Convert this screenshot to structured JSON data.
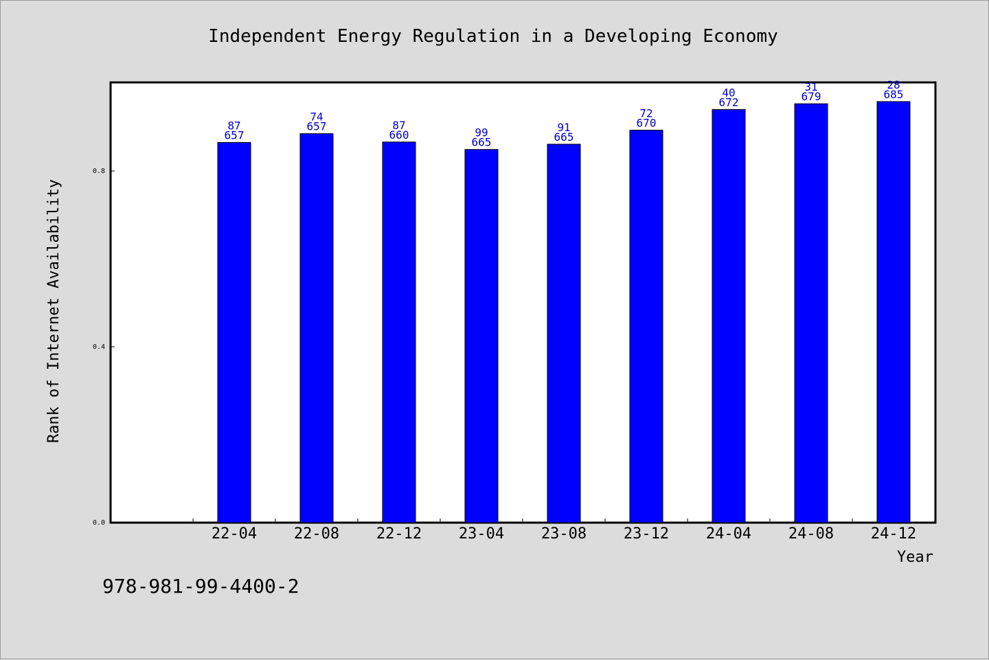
{
  "chart_data": {
    "type": "bar",
    "title": "Independent Energy Regulation in a Developing Economy",
    "xlabel": "Year",
    "ylabel": "Rank of Internet Availability",
    "categories": [
      "22-04",
      "22-08",
      "22-12",
      "23-04",
      "23-08",
      "23-12",
      "24-04",
      "24-08",
      "24-12"
    ],
    "values": [
      0.865,
      0.885,
      0.866,
      0.849,
      0.861,
      0.893,
      0.94,
      0.953,
      0.958
    ],
    "label_top": [
      "87",
      "74",
      "87",
      "99",
      "91",
      "72",
      "40",
      "31",
      "28"
    ],
    "label_bottom": [
      "657",
      "657",
      "660",
      "665",
      "665",
      "670",
      "672",
      "679",
      "685"
    ],
    "yticks": [
      "0.0",
      "0.4",
      "0.8"
    ],
    "ylim": [
      0,
      1.0
    ],
    "grid": false,
    "bar_color": "#0000ff",
    "label_color": "#0000cc"
  },
  "footer": {
    "isbn": "978-981-99-4400-2"
  }
}
